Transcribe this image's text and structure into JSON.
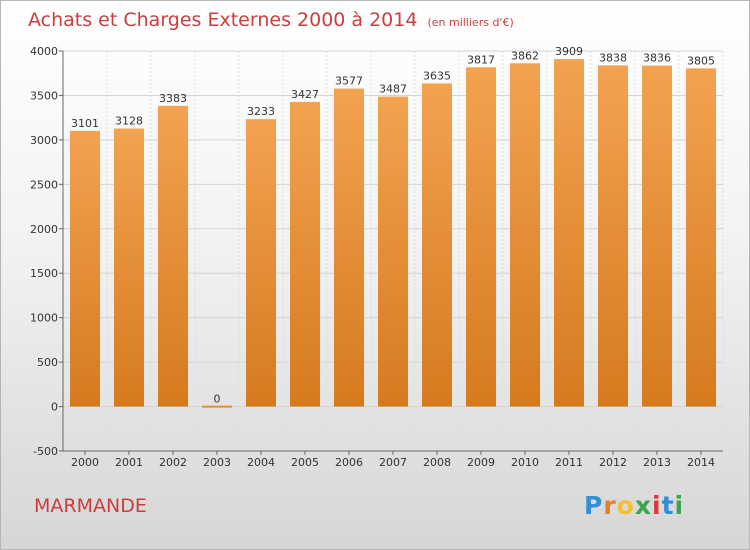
{
  "title": "Achats et Charges Externes 2000 à 2014",
  "unit": "(en milliers d'€)",
  "city": "MARMANDE",
  "logo": {
    "letters": [
      "P",
      "r",
      "o",
      "x",
      "i",
      "t",
      "i"
    ],
    "colors": [
      "#2f8fd8",
      "#e0822a",
      "#f2c12e",
      "#3aa64c",
      "#d83a3a",
      "#2f8fd8",
      "#3aa64c"
    ]
  },
  "colors": {
    "bar_top": "#f2a350",
    "bar_bottom": "#d67a1f",
    "title": "#cc3d3d"
  },
  "chart_data": {
    "type": "bar",
    "categories": [
      "2000",
      "2001",
      "2002",
      "2003",
      "2004",
      "2005",
      "2006",
      "2007",
      "2008",
      "2009",
      "2010",
      "2011",
      "2012",
      "2013",
      "2014"
    ],
    "values": [
      3101,
      3128,
      3383,
      0,
      3233,
      3427,
      3577,
      3487,
      3635,
      3817,
      3862,
      3909,
      3838,
      3836,
      3805
    ],
    "ylim": [
      -500,
      4000
    ],
    "yticks": [
      -500,
      0,
      500,
      1000,
      1500,
      2000,
      2500,
      3000,
      3500,
      4000
    ],
    "grid": true,
    "data_labels": true
  }
}
